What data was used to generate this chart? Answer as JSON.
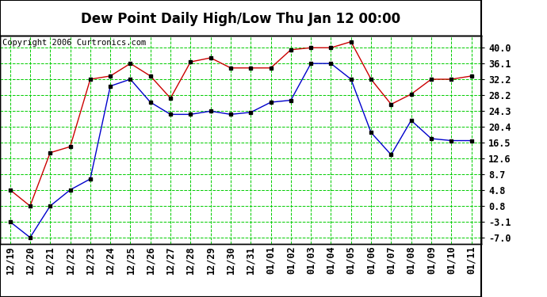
{
  "title": "Dew Point Daily High/Low Thu Jan 12 00:00",
  "copyright": "Copyright 2006 Curtronics.com",
  "x_labels": [
    "12/19",
    "12/20",
    "12/21",
    "12/22",
    "12/23",
    "12/24",
    "12/25",
    "12/26",
    "12/27",
    "12/28",
    "12/29",
    "12/30",
    "12/31",
    "01/01",
    "01/02",
    "01/03",
    "01/04",
    "01/05",
    "01/06",
    "01/07",
    "01/08",
    "01/09",
    "01/10",
    "01/11"
  ],
  "high_values": [
    4.8,
    0.8,
    14.0,
    15.5,
    32.2,
    33.0,
    36.1,
    33.0,
    27.5,
    36.5,
    37.5,
    35.0,
    35.0,
    35.0,
    39.5,
    40.0,
    40.0,
    41.5,
    32.2,
    26.0,
    28.5,
    32.2,
    32.2,
    33.0
  ],
  "low_values": [
    -3.1,
    -7.0,
    0.8,
    4.8,
    7.5,
    30.5,
    32.2,
    26.5,
    23.5,
    23.5,
    24.3,
    23.5,
    24.0,
    26.5,
    27.0,
    36.1,
    36.1,
    32.2,
    19.0,
    13.5,
    22.0,
    17.5,
    17.0,
    17.0
  ],
  "high_color": "#cc0000",
  "low_color": "#0000cc",
  "marker_color": "#000000",
  "bg_color": "#ffffff",
  "plot_bg_color": "#ffffff",
  "grid_color": "#00cc00",
  "yticks": [
    40.0,
    36.1,
    32.2,
    28.2,
    24.3,
    20.4,
    16.5,
    12.6,
    8.7,
    4.8,
    0.8,
    -3.1,
    -7.0
  ],
  "ylim": [
    -8.5,
    43.0
  ],
  "title_fontsize": 12,
  "tick_fontsize": 8.5,
  "copyright_fontsize": 7.5
}
